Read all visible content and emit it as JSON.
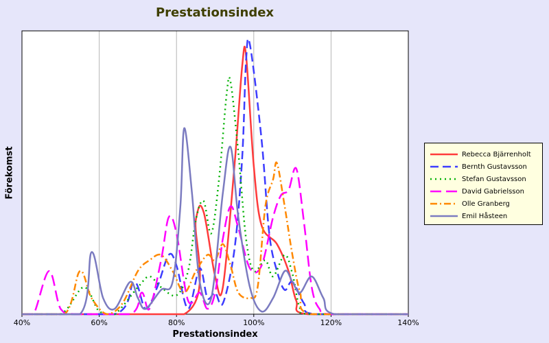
{
  "chart_data": {
    "type": "line",
    "title": "Prestationsindex",
    "xlabel": "Prestationsindex",
    "ylabel": "Förekomst",
    "xlim": [
      0.4,
      1.4
    ],
    "ylim": [
      0,
      1
    ],
    "x_ticks": [
      "40%",
      "60%",
      "80%",
      "100%",
      "120%",
      "140%"
    ],
    "grid": "vertical",
    "legend_position": "right",
    "series": [
      {
        "name": "Rebecca Bjärrenholt",
        "color": "#ff3b3b",
        "dash": "solid",
        "points": [
          [
            0.4,
            0
          ],
          [
            0.82,
            0
          ],
          [
            0.85,
            0.35
          ],
          [
            0.87,
            0.38
          ],
          [
            0.9,
            0.14
          ],
          [
            0.92,
            0.1
          ],
          [
            0.95,
            0.55
          ],
          [
            0.97,
            0.92
          ],
          [
            0.98,
            0.96
          ],
          [
            1.0,
            0.55
          ],
          [
            1.02,
            0.33
          ],
          [
            1.06,
            0.26
          ],
          [
            1.09,
            0.16
          ],
          [
            1.11,
            0.05
          ],
          [
            1.14,
            0
          ],
          [
            1.4,
            0
          ]
        ]
      },
      {
        "name": "Bernth Gustavsson",
        "color": "#3c3cff",
        "dash": "dashed",
        "points": [
          [
            0.4,
            0
          ],
          [
            0.64,
            0
          ],
          [
            0.69,
            0.12
          ],
          [
            0.72,
            0.02
          ],
          [
            0.75,
            0.1
          ],
          [
            0.78,
            0.22
          ],
          [
            0.8,
            0.18
          ],
          [
            0.83,
            0.02
          ],
          [
            0.86,
            0.17
          ],
          [
            0.88,
            0.06
          ],
          [
            0.9,
            0.08
          ],
          [
            0.92,
            0.04
          ],
          [
            0.95,
            0.24
          ],
          [
            0.97,
            0.58
          ],
          [
            0.98,
            0.94
          ],
          [
            0.99,
            1.0
          ],
          [
            1.02,
            0.65
          ],
          [
            1.04,
            0.3
          ],
          [
            1.06,
            0.16
          ],
          [
            1.08,
            0.09
          ],
          [
            1.1,
            0.12
          ],
          [
            1.13,
            0.04
          ],
          [
            1.16,
            0
          ],
          [
            1.4,
            0
          ]
        ]
      },
      {
        "name": "Stefan Gustavsson",
        "color": "#00b000",
        "dash": "dotted",
        "points": [
          [
            0.4,
            0
          ],
          [
            0.5,
            0
          ],
          [
            0.56,
            0.1
          ],
          [
            0.6,
            0.01
          ],
          [
            0.64,
            0
          ],
          [
            0.7,
            0.1
          ],
          [
            0.73,
            0.14
          ],
          [
            0.76,
            0.1
          ],
          [
            0.8,
            0.07
          ],
          [
            0.83,
            0.16
          ],
          [
            0.85,
            0.35
          ],
          [
            0.87,
            0.42
          ],
          [
            0.89,
            0.3
          ],
          [
            0.91,
            0.5
          ],
          [
            0.93,
            0.82
          ],
          [
            0.94,
            0.86
          ],
          [
            0.96,
            0.6
          ],
          [
            0.98,
            0.28
          ],
          [
            1.0,
            0.16
          ],
          [
            1.03,
            0.2
          ],
          [
            1.05,
            0.14
          ],
          [
            1.08,
            0.22
          ],
          [
            1.1,
            0.15
          ],
          [
            1.12,
            0.02
          ],
          [
            1.15,
            0
          ],
          [
            1.4,
            0
          ]
        ]
      },
      {
        "name": "David Gabrielsson",
        "color": "#ff00ff",
        "dash": "longdash",
        "points": [
          [
            0.4,
            0
          ],
          [
            0.43,
            0
          ],
          [
            0.47,
            0.16
          ],
          [
            0.5,
            0.02
          ],
          [
            0.54,
            0
          ],
          [
            0.68,
            0
          ],
          [
            0.71,
            0.08
          ],
          [
            0.73,
            0.02
          ],
          [
            0.76,
            0.2
          ],
          [
            0.78,
            0.36
          ],
          [
            0.8,
            0.3
          ],
          [
            0.83,
            0.05
          ],
          [
            0.86,
            0.08
          ],
          [
            0.88,
            0.02
          ],
          [
            0.9,
            0.08
          ],
          [
            0.92,
            0.28
          ],
          [
            0.94,
            0.4
          ],
          [
            0.96,
            0.32
          ],
          [
            0.99,
            0.17
          ],
          [
            1.02,
            0.18
          ],
          [
            1.05,
            0.36
          ],
          [
            1.07,
            0.44
          ],
          [
            1.09,
            0.46
          ],
          [
            1.11,
            0.54
          ],
          [
            1.13,
            0.34
          ],
          [
            1.15,
            0.1
          ],
          [
            1.17,
            0.02
          ],
          [
            1.2,
            0
          ],
          [
            1.4,
            0
          ]
        ]
      },
      {
        "name": "Olle Granberg",
        "color": "#ff8800",
        "dash": "dashdot",
        "points": [
          [
            0.4,
            0
          ],
          [
            0.51,
            0
          ],
          [
            0.55,
            0.16
          ],
          [
            0.58,
            0.06
          ],
          [
            0.62,
            0
          ],
          [
            0.66,
            0.04
          ],
          [
            0.7,
            0.16
          ],
          [
            0.73,
            0.2
          ],
          [
            0.76,
            0.22
          ],
          [
            0.79,
            0.16
          ],
          [
            0.82,
            0.08
          ],
          [
            0.85,
            0.16
          ],
          [
            0.88,
            0.22
          ],
          [
            0.9,
            0.2
          ],
          [
            0.92,
            0.26
          ],
          [
            0.94,
            0.18
          ],
          [
            0.96,
            0.08
          ],
          [
            0.99,
            0.06
          ],
          [
            1.01,
            0.1
          ],
          [
            1.03,
            0.4
          ],
          [
            1.05,
            0.5
          ],
          [
            1.06,
            0.56
          ],
          [
            1.08,
            0.4
          ],
          [
            1.1,
            0.22
          ],
          [
            1.12,
            0.08
          ],
          [
            1.15,
            0
          ],
          [
            1.4,
            0
          ]
        ]
      },
      {
        "name": "Emil Håsteen",
        "color": "#7b7bc0",
        "dash": "solid",
        "points": [
          [
            0.4,
            0
          ],
          [
            0.55,
            0
          ],
          [
            0.58,
            0.23
          ],
          [
            0.61,
            0.06
          ],
          [
            0.64,
            0.02
          ],
          [
            0.68,
            0.12
          ],
          [
            0.7,
            0.06
          ],
          [
            0.72,
            0.02
          ],
          [
            0.76,
            0.09
          ],
          [
            0.79,
            0.12
          ],
          [
            0.81,
            0.4
          ],
          [
            0.82,
            0.69
          ],
          [
            0.84,
            0.45
          ],
          [
            0.86,
            0.12
          ],
          [
            0.89,
            0.06
          ],
          [
            0.92,
            0.45
          ],
          [
            0.94,
            0.62
          ],
          [
            0.96,
            0.36
          ],
          [
            0.99,
            0.1
          ],
          [
            1.02,
            0.01
          ],
          [
            1.05,
            0.06
          ],
          [
            1.08,
            0.16
          ],
          [
            1.1,
            0.12
          ],
          [
            1.12,
            0.08
          ],
          [
            1.15,
            0.14
          ],
          [
            1.18,
            0.06
          ],
          [
            1.21,
            0
          ],
          [
            1.4,
            0
          ]
        ]
      }
    ]
  }
}
